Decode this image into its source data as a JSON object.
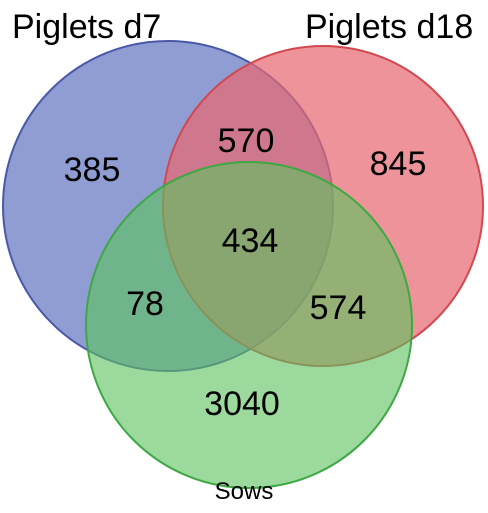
{
  "diagram": {
    "type": "venn",
    "sets": [
      {
        "id": "d7",
        "label": "Piglets d7",
        "color": "#6a7cc4"
      },
      {
        "id": "d18",
        "label": "Piglets d18",
        "color": "#e86a72"
      },
      {
        "id": "sows",
        "label": "Sows",
        "color": "#5dc25f"
      }
    ],
    "regions": {
      "d7_only": 385,
      "d18_only": 845,
      "sows_only": 3040,
      "d7_d18": 570,
      "d7_sows": 78,
      "d18_sows": 574,
      "all_three": 434
    }
  }
}
